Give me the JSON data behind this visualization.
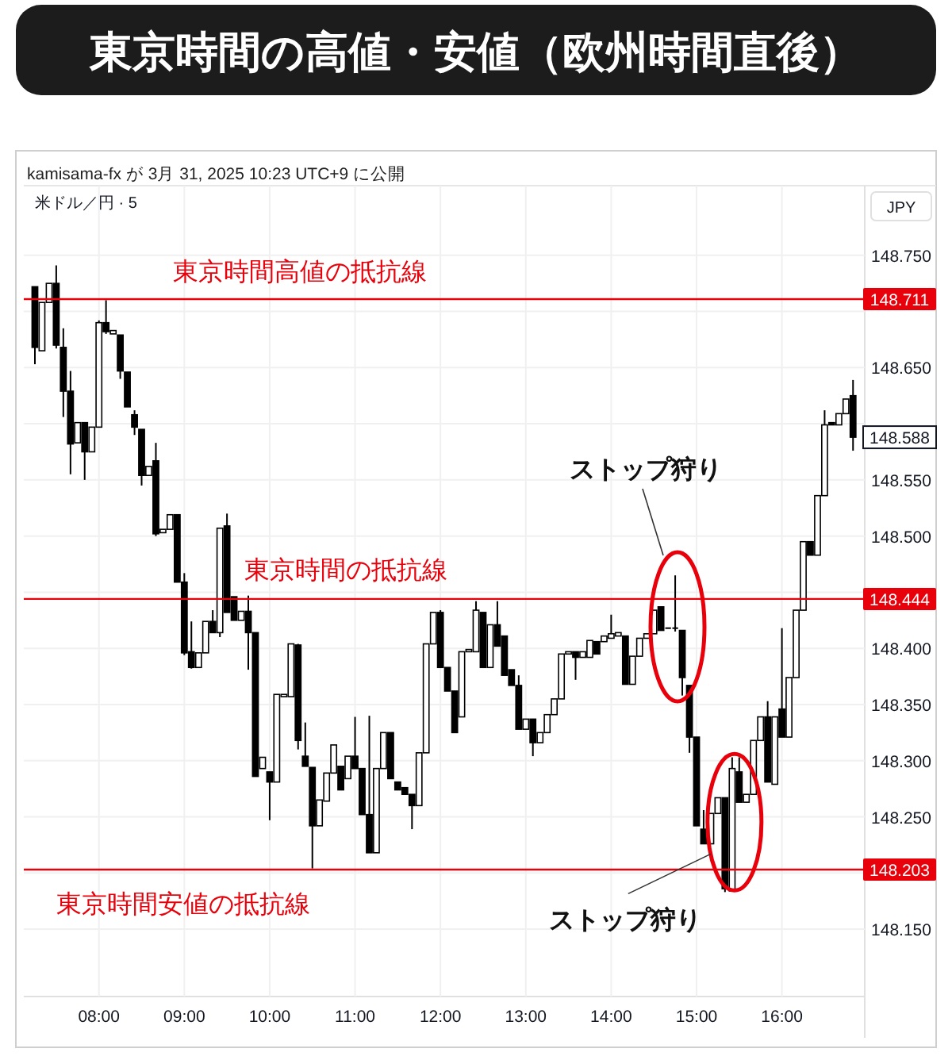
{
  "chart_data": {
    "type": "candlestick",
    "title": "東京時間の高値・安値（欧州時間直後）",
    "subtitle": "kamisama-fx が 3月 31, 2025 10:23 UTC+9 に公開",
    "color": "#000000",
    "grid": true,
    "x": [
      7.25,
      7.333,
      7.417,
      7.5,
      7.583,
      7.667,
      7.75,
      7.833,
      7.917,
      8,
      8.083,
      8.167,
      8.25,
      8.333,
      8.417,
      8.5,
      8.583,
      8.667,
      8.75,
      8.833,
      8.917,
      9,
      9.083,
      9.167,
      9.25,
      9.333,
      9.417,
      9.5,
      9.583,
      9.667,
      9.75,
      9.833,
      9.917,
      10,
      10.083,
      10.167,
      10.25,
      10.333,
      10.417,
      10.5,
      10.583,
      10.667,
      10.75,
      10.833,
      10.917,
      11,
      11.083,
      11.167,
      11.25,
      11.333,
      11.417,
      11.5,
      11.583,
      11.667,
      11.75,
      11.833,
      11.917,
      12,
      12.083,
      12.167,
      12.25,
      12.333,
      12.417,
      12.5,
      12.583,
      12.667,
      12.75,
      12.833,
      12.917,
      13,
      13.083,
      13.167,
      13.25,
      13.333,
      13.417,
      13.5,
      13.583,
      13.667,
      13.75,
      13.833,
      13.917,
      14,
      14.083,
      14.167,
      14.25,
      14.333,
      14.417,
      14.5,
      14.583,
      14.667,
      14.75,
      14.833,
      14.917,
      15,
      15.083,
      15.167,
      15.25,
      15.333,
      15.417,
      15.5,
      15.583,
      15.667,
      15.75,
      15.833,
      15.917,
      16,
      16.083,
      16.167,
      16.25,
      16.333,
      16.417,
      16.5,
      16.583,
      16.667,
      16.75,
      16.833
    ],
    "ohlc": [
      [
        148.722,
        148.722,
        148.653,
        148.668
      ],
      [
        148.665,
        148.708,
        148.665,
        148.708
      ],
      [
        148.708,
        148.725,
        148.708,
        148.725
      ],
      [
        148.725,
        148.741,
        148.667,
        148.67
      ],
      [
        148.668,
        148.685,
        148.606,
        148.629
      ],
      [
        148.629,
        148.647,
        148.555,
        148.582
      ],
      [
        148.583,
        148.601,
        148.583,
        148.601
      ],
      [
        148.601,
        148.601,
        148.55,
        148.575
      ],
      [
        148.575,
        148.597,
        148.575,
        148.597
      ],
      [
        148.597,
        148.692,
        148.597,
        148.69
      ],
      [
        148.69,
        148.71,
        148.68,
        148.682
      ],
      [
        148.68,
        148.683,
        148.68,
        148.683
      ],
      [
        148.679,
        148.679,
        148.64,
        148.647
      ],
      [
        148.646,
        148.646,
        148.615,
        148.615
      ],
      [
        148.608,
        148.612,
        148.59,
        148.597
      ],
      [
        148.595,
        148.595,
        148.545,
        148.554
      ],
      [
        148.554,
        148.562,
        148.554,
        148.562
      ],
      [
        148.567,
        148.583,
        148.5,
        148.502
      ],
      [
        148.503,
        148.506,
        148.503,
        148.506
      ],
      [
        148.506,
        148.519,
        148.506,
        148.519
      ],
      [
        148.519,
        148.519,
        148.459,
        148.459
      ],
      [
        148.459,
        148.467,
        148.394,
        148.396
      ],
      [
        148.397,
        148.424,
        148.382,
        148.383
      ],
      [
        148.383,
        148.396,
        148.383,
        148.396
      ],
      [
        148.396,
        148.424,
        148.396,
        148.424
      ],
      [
        148.424,
        148.434,
        148.414,
        148.414
      ],
      [
        148.414,
        148.507,
        148.41,
        148.507
      ],
      [
        148.509,
        148.52,
        148.432,
        148.432
      ],
      [
        148.446,
        148.446,
        148.425,
        148.425
      ],
      [
        148.425,
        148.433,
        148.425,
        148.433
      ],
      [
        148.433,
        148.447,
        148.381,
        148.414
      ],
      [
        148.414,
        148.414,
        148.286,
        148.286
      ],
      [
        148.293,
        148.303,
        148.293,
        148.303
      ],
      [
        148.29,
        148.29,
        148.247,
        148.281
      ],
      [
        148.281,
        148.359,
        148.281,
        148.359
      ],
      [
        148.357,
        148.359,
        148.357,
        148.359
      ],
      [
        148.357,
        148.404,
        148.357,
        148.404
      ],
      [
        148.403,
        148.404,
        148.31,
        148.318
      ],
      [
        148.304,
        148.334,
        148.295,
        148.295
      ],
      [
        148.294,
        148.294,
        148.204,
        148.242
      ],
      [
        148.242,
        148.265,
        148.242,
        148.265
      ],
      [
        148.264,
        148.289,
        148.264,
        148.289
      ],
      [
        148.289,
        148.314,
        148.289,
        148.314
      ],
      [
        148.295,
        148.295,
        148.274,
        148.274
      ],
      [
        148.284,
        148.304,
        148.284,
        148.304
      ],
      [
        148.304,
        148.339,
        148.293,
        148.293
      ],
      [
        148.293,
        148.293,
        148.252,
        148.252
      ],
      [
        148.252,
        148.34,
        148.218,
        148.218
      ],
      [
        148.218,
        148.293,
        148.218,
        148.293
      ],
      [
        148.293,
        148.325,
        148.293,
        148.325
      ],
      [
        148.325,
        148.325,
        148.284,
        148.284
      ],
      [
        148.281,
        148.281,
        148.274,
        148.274
      ],
      [
        148.276,
        148.276,
        148.27,
        148.27
      ],
      [
        148.27,
        148.27,
        148.239,
        148.26
      ],
      [
        148.26,
        148.307,
        148.26,
        148.307
      ],
      [
        148.307,
        148.404,
        148.307,
        148.404
      ],
      [
        148.404,
        148.432,
        148.404,
        148.432
      ],
      [
        148.432,
        148.434,
        148.383,
        148.383
      ],
      [
        148.383,
        148.383,
        148.362,
        148.362
      ],
      [
        148.362,
        148.362,
        148.325,
        148.325
      ],
      [
        148.339,
        148.397,
        148.339,
        148.397
      ],
      [
        148.397,
        148.399,
        148.397,
        148.399
      ],
      [
        148.397,
        148.442,
        148.397,
        148.434
      ],
      [
        148.432,
        148.432,
        148.383,
        148.383
      ],
      [
        148.383,
        148.421,
        148.383,
        148.421
      ],
      [
        148.421,
        148.442,
        148.402,
        148.402
      ],
      [
        148.411,
        148.411,
        148.376,
        148.376
      ],
      [
        148.381,
        148.381,
        148.367,
        148.367
      ],
      [
        148.367,
        148.376,
        148.328,
        148.328
      ],
      [
        148.328,
        148.337,
        148.328,
        148.337
      ],
      [
        148.337,
        148.337,
        148.304,
        148.316
      ],
      [
        148.316,
        148.325,
        148.316,
        148.325
      ],
      [
        148.325,
        148.341,
        148.325,
        148.341
      ],
      [
        148.341,
        148.355,
        148.341,
        148.355
      ],
      [
        148.355,
        148.395,
        148.355,
        148.395
      ],
      [
        148.395,
        148.397,
        148.395,
        148.397
      ],
      [
        148.397,
        148.397,
        148.372,
        148.392
      ],
      [
        148.392,
        148.397,
        148.392,
        148.397
      ],
      [
        148.392,
        148.407,
        148.392,
        148.407
      ],
      [
        148.406,
        148.406,
        148.395,
        148.395
      ],
      [
        148.406,
        148.411,
        148.406,
        148.411
      ],
      [
        148.409,
        148.43,
        148.409,
        148.413
      ],
      [
        148.411,
        148.414,
        148.411,
        148.414
      ],
      [
        148.411,
        148.411,
        148.368,
        148.368
      ],
      [
        148.368,
        148.393,
        148.368,
        148.393
      ],
      [
        148.393,
        148.409,
        148.393,
        148.409
      ],
      [
        148.409,
        148.413,
        148.409,
        148.413
      ],
      [
        148.413,
        148.434,
        148.413,
        148.434
      ],
      [
        148.437,
        148.437,
        148.416,
        148.416
      ],
      [
        148.418,
        148.418,
        148.418,
        148.418
      ],
      [
        148.418,
        148.465,
        148.415,
        148.418
      ],
      [
        148.416,
        148.416,
        148.358,
        148.374
      ],
      [
        148.367,
        148.367,
        148.307,
        148.321
      ],
      [
        148.321,
        148.321,
        148.242,
        148.242
      ],
      [
        148.239,
        148.256,
        148.226,
        148.226
      ],
      [
        148.226,
        148.253,
        148.226,
        148.253
      ],
      [
        148.253,
        148.267,
        148.253,
        148.267
      ],
      [
        148.267,
        148.267,
        148.183,
        148.186
      ],
      [
        148.184,
        148.303,
        148.184,
        148.293
      ],
      [
        148.29,
        148.303,
        148.263,
        148.263
      ],
      [
        148.263,
        148.27,
        148.263,
        148.27
      ],
      [
        148.27,
        148.318,
        148.27,
        148.318
      ],
      [
        148.318,
        148.339,
        148.318,
        148.339
      ],
      [
        148.339,
        148.353,
        148.281,
        148.281
      ],
      [
        148.279,
        148.339,
        148.279,
        148.339
      ],
      [
        148.346,
        148.418,
        148.321,
        148.321
      ],
      [
        148.321,
        148.374,
        148.321,
        148.374
      ],
      [
        148.374,
        148.434,
        148.374,
        148.434
      ],
      [
        148.434,
        148.495,
        148.434,
        148.495
      ],
      [
        148.495,
        148.495,
        148.483,
        148.483
      ],
      [
        148.483,
        148.536,
        148.483,
        148.536
      ],
      [
        148.536,
        148.612,
        148.536,
        148.599
      ],
      [
        148.601,
        148.601,
        148.599,
        148.599
      ],
      [
        148.599,
        148.609,
        148.599,
        148.609
      ],
      [
        148.609,
        148.622,
        148.609,
        148.622
      ],
      [
        148.625,
        148.639,
        148.576,
        148.588
      ]
    ],
    "xlim": [
      7.12,
      16.97
    ],
    "xticks": [
      {
        "value": 8,
        "label": "08:00"
      },
      {
        "value": 9,
        "label": "09:00"
      },
      {
        "value": 10,
        "label": "10:00"
      },
      {
        "value": 11,
        "label": "11:00"
      },
      {
        "value": 12,
        "label": "12:00"
      },
      {
        "value": 13,
        "label": "13:00"
      },
      {
        "value": 14,
        "label": "14:00"
      },
      {
        "value": 15,
        "label": "15:00"
      },
      {
        "value": 16,
        "label": "16:00"
      }
    ],
    "ylim": [
      148.09,
      148.812
    ],
    "yticks": [
      {
        "value": 148.15,
        "label": "148.150"
      },
      {
        "value": 148.2,
        "label": null
      },
      {
        "value": 148.25,
        "label": "148.250"
      },
      {
        "value": 148.3,
        "label": "148.300"
      },
      {
        "value": 148.35,
        "label": "148.350"
      },
      {
        "value": 148.4,
        "label": "148.400"
      },
      {
        "value": 148.45,
        "label": null
      },
      {
        "value": 148.5,
        "label": "148.500"
      },
      {
        "value": 148.55,
        "label": "148.550"
      },
      {
        "value": 148.6,
        "label": null
      },
      {
        "value": 148.65,
        "label": "148.650"
      },
      {
        "value": 148.7,
        "label": null
      },
      {
        "value": 148.75,
        "label": "148.750"
      }
    ],
    "ref_lines": [
      {
        "axis": "y",
        "value": 148.711,
        "label": "148.711",
        "color": "#e8000b"
      },
      {
        "axis": "y",
        "value": 148.444,
        "label": "148.444",
        "color": "#e8000b"
      },
      {
        "axis": "y",
        "value": 148.203,
        "label": "148.203",
        "color": "#e8000b"
      }
    ],
    "annotations": [
      "米ドル／円 · 5",
      "JPY",
      {
        "text": "148.588",
        "x": 16.833,
        "y": 148.588
      },
      "ストップ狩り",
      {
        "text": "ストップ狩り",
        "x": 15.333,
        "y": 148.183
      },
      {
        "text": "東京時間高値の抵抗線",
        "x": 8.87,
        "y": 148.711
      },
      {
        "text": "東京時間の抵抗線",
        "x": 9.7,
        "y": 148.444
      },
      {
        "text": "東京時間安値の抵抗線",
        "x": 7.5,
        "y": 148.203
      }
    ]
  }
}
